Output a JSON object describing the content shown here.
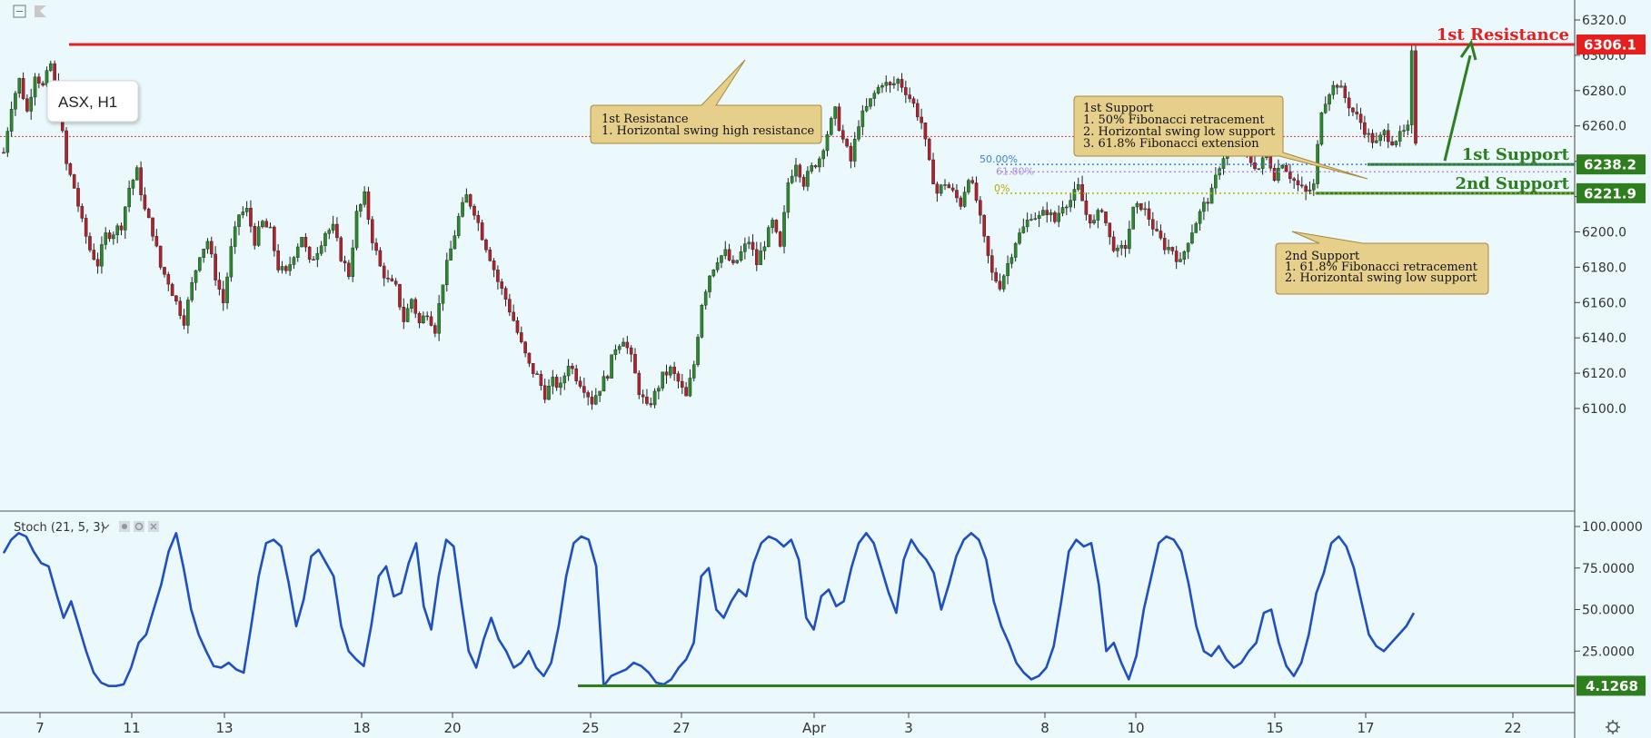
{
  "toolbar": {
    "collapse_icon": "collapse-icon",
    "flag_icon": "flag-icon"
  },
  "symbol_label": "ASX, H1",
  "chart_data": [
    {
      "type": "candlestick",
      "symbol": "ASX",
      "timeframe": "H1",
      "ylim": [
        6085,
        6328
      ],
      "y_ticks": [
        6100.0,
        6120.0,
        6140.0,
        6160.0,
        6180.0,
        6200.0,
        6220.0,
        6240.0,
        6260.0,
        6280.0,
        6300.0,
        6320.0
      ],
      "x_ticks": [
        "7",
        "11",
        "13",
        "18",
        "20",
        "25",
        "27",
        "Apr",
        "3",
        "8",
        "10",
        "15",
        "17",
        "22"
      ],
      "close_path": [
        [
          0,
          6245
        ],
        [
          2,
          6272
        ],
        [
          4,
          6286
        ],
        [
          6,
          6268
        ],
        [
          8,
          6290
        ],
        [
          10,
          6282
        ],
        [
          12,
          6295
        ],
        [
          14,
          6272
        ],
        [
          16,
          6238
        ],
        [
          18,
          6225
        ],
        [
          20,
          6205
        ],
        [
          22,
          6190
        ],
        [
          24,
          6182
        ],
        [
          26,
          6198
        ],
        [
          28,
          6200
        ],
        [
          30,
          6204
        ],
        [
          32,
          6225
        ],
        [
          34,
          6234
        ],
        [
          36,
          6212
        ],
        [
          38,
          6200
        ],
        [
          40,
          6180
        ],
        [
          42,
          6172
        ],
        [
          44,
          6160
        ],
        [
          46,
          6150
        ],
        [
          48,
          6170
        ],
        [
          50,
          6188
        ],
        [
          52,
          6195
        ],
        [
          54,
          6175
        ],
        [
          56,
          6160
        ],
        [
          58,
          6190
        ],
        [
          60,
          6210
        ],
        [
          62,
          6212
        ],
        [
          64,
          6195
        ],
        [
          66,
          6205
        ],
        [
          68,
          6200
        ],
        [
          70,
          6180
        ],
        [
          72,
          6176
        ],
        [
          74,
          6188
        ],
        [
          76,
          6198
        ],
        [
          78,
          6182
        ],
        [
          80,
          6190
        ],
        [
          82,
          6200
        ],
        [
          84,
          6202
        ],
        [
          86,
          6186
        ],
        [
          88,
          6176
        ],
        [
          90,
          6210
        ],
        [
          92,
          6220
        ],
        [
          94,
          6196
        ],
        [
          96,
          6180
        ],
        [
          98,
          6172
        ],
        [
          100,
          6168
        ],
        [
          102,
          6150
        ],
        [
          104,
          6162
        ],
        [
          106,
          6148
        ],
        [
          108,
          6155
        ],
        [
          110,
          6145
        ],
        [
          112,
          6172
        ],
        [
          114,
          6190
        ],
        [
          116,
          6208
        ],
        [
          118,
          6220
        ],
        [
          120,
          6212
        ],
        [
          122,
          6198
        ],
        [
          124,
          6186
        ],
        [
          126,
          6172
        ],
        [
          128,
          6162
        ],
        [
          130,
          6150
        ],
        [
          132,
          6136
        ],
        [
          134,
          6124
        ],
        [
          136,
          6118
        ],
        [
          138,
          6108
        ],
        [
          140,
          6115
        ],
        [
          142,
          6112
        ],
        [
          144,
          6126
        ],
        [
          146,
          6118
        ],
        [
          148,
          6112
        ],
        [
          150,
          6104
        ],
        [
          152,
          6112
        ],
        [
          154,
          6120
        ],
        [
          156,
          6135
        ],
        [
          158,
          6140
        ],
        [
          160,
          6128
        ],
        [
          162,
          6110
        ],
        [
          164,
          6100
        ],
        [
          166,
          6108
        ],
        [
          168,
          6118
        ],
        [
          170,
          6122
        ],
        [
          172,
          6115
        ],
        [
          174,
          6106
        ],
        [
          176,
          6125
        ],
        [
          178,
          6160
        ],
        [
          180,
          6176
        ],
        [
          182,
          6185
        ],
        [
          184,
          6188
        ],
        [
          186,
          6180
        ],
        [
          188,
          6188
        ],
        [
          190,
          6195
        ],
        [
          192,
          6182
        ],
        [
          194,
          6194
        ],
        [
          196,
          6205
        ],
        [
          198,
          6190
        ],
        [
          200,
          6228
        ],
        [
          202,
          6240
        ],
        [
          204,
          6228
        ],
        [
          206,
          6236
        ],
        [
          208,
          6242
        ],
        [
          210,
          6256
        ],
        [
          212,
          6268
        ],
        [
          214,
          6252
        ],
        [
          216,
          6240
        ],
        [
          218,
          6262
        ],
        [
          220,
          6270
        ],
        [
          222,
          6278
        ],
        [
          224,
          6285
        ],
        [
          226,
          6282
        ],
        [
          228,
          6286
        ],
        [
          230,
          6280
        ],
        [
          232,
          6272
        ],
        [
          234,
          6262
        ],
        [
          236,
          6238
        ],
        [
          238,
          6222
        ],
        [
          240,
          6228
        ],
        [
          242,
          6222
        ],
        [
          244,
          6216
        ],
        [
          246,
          6232
        ],
        [
          248,
          6218
        ],
        [
          250,
          6195
        ],
        [
          252,
          6176
        ],
        [
          254,
          6170
        ],
        [
          256,
          6182
        ],
        [
          258,
          6195
        ],
        [
          260,
          6202
        ],
        [
          262,
          6210
        ],
        [
          264,
          6208
        ],
        [
          266,
          6212
        ],
        [
          268,
          6206
        ],
        [
          270,
          6216
        ],
        [
          272,
          6218
        ],
        [
          274,
          6225
        ],
        [
          276,
          6210
        ],
        [
          278,
          6205
        ],
        [
          280,
          6214
        ],
        [
          282,
          6196
        ],
        [
          284,
          6188
        ],
        [
          286,
          6192
        ],
        [
          288,
          6212
        ],
        [
          290,
          6215
        ],
        [
          292,
          6208
        ],
        [
          294,
          6198
        ],
        [
          296,
          6192
        ],
        [
          298,
          6190
        ],
        [
          300,
          6182
        ],
        [
          302,
          6196
        ],
        [
          304,
          6206
        ],
        [
          306,
          6215
        ],
        [
          308,
          6222
        ],
        [
          310,
          6238
        ],
        [
          312,
          6248
        ],
        [
          314,
          6255
        ],
        [
          316,
          6246
        ],
        [
          318,
          6240
        ],
        [
          320,
          6236
        ],
        [
          322,
          6244
        ],
        [
          324,
          6232
        ],
        [
          326,
          6240
        ],
        [
          328,
          6232
        ],
        [
          330,
          6226
        ],
        [
          332,
          6222
        ],
        [
          334,
          6226
        ],
        [
          336,
          6270
        ],
        [
          338,
          6280
        ],
        [
          340,
          6284
        ],
        [
          342,
          6276
        ],
        [
          344,
          6268
        ],
        [
          346,
          6262
        ],
        [
          348,
          6254
        ],
        [
          350,
          6250
        ],
        [
          352,
          6256
        ],
        [
          354,
          6252
        ],
        [
          356,
          6254
        ],
        [
          358,
          6258
        ],
        [
          359,
          6300
        ],
        [
          360,
          6252
        ]
      ],
      "levels": [
        {
          "label": "1st Resistance",
          "price_tag": "6306.1",
          "value": 6306.1,
          "color": "#e51e1e"
        },
        {
          "label": "1st Support",
          "price_tag": "6238.2",
          "value": 6238.2,
          "color": "#2e7d1e"
        },
        {
          "label": "2nd Support",
          "price_tag": "6221.9",
          "value": 6221.9,
          "color": "#2e7d1e"
        }
      ],
      "fib_levels": [
        {
          "label": "50.00%",
          "value": 6238.2,
          "color": "#3a7fe0"
        },
        {
          "label": "61.80%",
          "value": 6234.0,
          "color": "#b38ee6"
        },
        {
          "label": "0%",
          "value": 6221.9,
          "color": "#b0b000"
        }
      ],
      "dotted_price_line": 6254,
      "annotations": [
        {
          "title": "1st Resistance",
          "lines": [
            "1. Horizontal swing high resistance"
          ]
        },
        {
          "title": "1st Support",
          "lines": [
            "1. 50% Fibonacci retracement",
            "2. Horizontal swing low support",
            "3. 61.8% Fibonacci extension"
          ]
        },
        {
          "title": "2nd Support",
          "lines": [
            "1. 61.8% Fibonacci retracement",
            "2. Horizontal swing low support"
          ]
        }
      ]
    },
    {
      "type": "line",
      "indicator": "Stoch (21, 5, 3)",
      "ylim": [
        0,
        105
      ],
      "y_ticks": [
        "100.0000",
        "75.0000",
        "50.0000",
        "25.0000"
      ],
      "support_value": 4.1268,
      "support_tag": "4.1268",
      "values": [
        84,
        92,
        96,
        94,
        85,
        78,
        76,
        60,
        45,
        55,
        40,
        25,
        12,
        6,
        4,
        4,
        5,
        15,
        30,
        35,
        50,
        65,
        85,
        96,
        75,
        50,
        35,
        25,
        16,
        15,
        18,
        14,
        12,
        40,
        70,
        90,
        92,
        88,
        66,
        40,
        56,
        82,
        86,
        78,
        70,
        40,
        25,
        20,
        16,
        40,
        70,
        76,
        58,
        60,
        78,
        90,
        52,
        38,
        70,
        92,
        88,
        55,
        25,
        15,
        32,
        45,
        32,
        25,
        15,
        18,
        25,
        15,
        10,
        18,
        40,
        70,
        90,
        94,
        92,
        76,
        4,
        10,
        12,
        14,
        18,
        16,
        12,
        6,
        5,
        8,
        15,
        20,
        30,
        70,
        75,
        50,
        45,
        55,
        62,
        58,
        78,
        90,
        94,
        92,
        88,
        92,
        80,
        45,
        38,
        58,
        62,
        52,
        55,
        75,
        90,
        96,
        90,
        75,
        60,
        48,
        80,
        92,
        85,
        80,
        72,
        50,
        65,
        82,
        92,
        96,
        92,
        80,
        55,
        40,
        30,
        18,
        12,
        8,
        10,
        15,
        28,
        55,
        85,
        92,
        88,
        90,
        65,
        25,
        30,
        18,
        8,
        22,
        50,
        70,
        90,
        94,
        92,
        85,
        65,
        40,
        25,
        22,
        28,
        20,
        15,
        18,
        25,
        30,
        48,
        50,
        30,
        16,
        10,
        18,
        35,
        60,
        72,
        90,
        94,
        88,
        75,
        55,
        35,
        28,
        25,
        30,
        35,
        40,
        48
      ]
    }
  ]
}
